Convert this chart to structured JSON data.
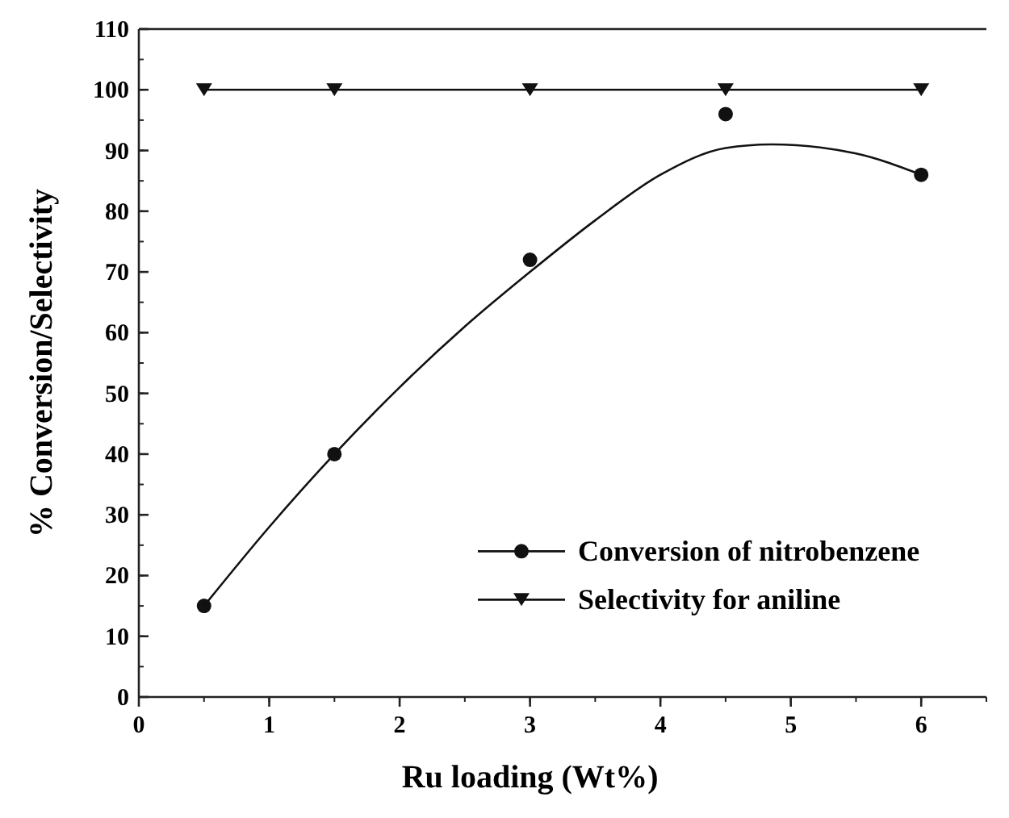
{
  "chart_data": {
    "type": "scatter",
    "xlabel": "Ru loading (Wt%)",
    "ylabel": "% Conversion/Selectivity",
    "xlim": [
      0,
      6.5
    ],
    "xticks": [
      0,
      1,
      2,
      3,
      4,
      5,
      6
    ],
    "ylim": [
      0,
      110
    ],
    "yticks": [
      0,
      10,
      20,
      30,
      40,
      50,
      60,
      70,
      80,
      90,
      100,
      110
    ],
    "grid": false,
    "legend": "bottom right",
    "series": [
      {
        "name": "Conversion of nitrobenzene",
        "color": "#111111",
        "marker": "circle",
        "x": [
          0.5,
          1.5,
          3,
          4.5,
          6
        ],
        "values": [
          15,
          40,
          72,
          96,
          86
        ]
      },
      {
        "type": "line",
        "color": "#111111",
        "marker": "none",
        "x": [
          0.5,
          1,
          1.5,
          2,
          2.5,
          3,
          3.5,
          4,
          4.5,
          4.85,
          5.5,
          6
        ],
        "values": [
          15,
          28,
          40,
          51,
          61,
          70,
          78.5,
          86,
          90.4,
          91,
          89.5,
          86
        ]
      },
      {
        "name": "Selectivity for aniline",
        "type": "line",
        "color": "#111111",
        "marker": "triangle",
        "x": [
          0.5,
          1.5,
          3,
          4.5,
          6
        ],
        "values": [
          100,
          100,
          100,
          100,
          100
        ]
      }
    ]
  }
}
